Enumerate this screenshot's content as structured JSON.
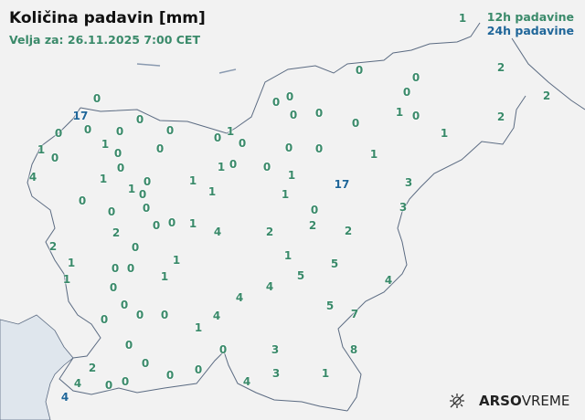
{
  "header": {
    "title": "Količina padavin [mm]",
    "subtitle": "Velja za: 26.11.2025 7:00 CET"
  },
  "legend": {
    "items": [
      {
        "label": "12h padavine",
        "color": "#3a8a6a"
      },
      {
        "label": "24h padavine",
        "color": "#1f6699"
      }
    ]
  },
  "colors": {
    "h12": "#3a8a6a",
    "h24": "#1f6699",
    "border": "#5b6b82",
    "sea": "#dfe6ed",
    "land": "#f2f2f2"
  },
  "logo": {
    "bold": "ARSO",
    "light": "VREME",
    "icon": "sun-cloud-icon"
  },
  "stations": [
    {
      "v": "1",
      "t": "12h"
    },
    {
      "v": "0",
      "t": "12h"
    },
    {
      "v": "0",
      "t": "12h"
    },
    {
      "v": "2",
      "t": "12h"
    },
    {
      "v": "2",
      "t": "12h"
    },
    {
      "v": "2",
      "t": "12h"
    },
    {
      "v": "0",
      "t": "12h"
    },
    {
      "v": "0",
      "t": "12h"
    },
    {
      "v": "0",
      "t": "12h"
    },
    {
      "v": "0",
      "t": "12h"
    },
    {
      "v": "0",
      "t": "12h"
    },
    {
      "v": "0",
      "t": "12h"
    },
    {
      "v": "1",
      "t": "12h"
    },
    {
      "v": "0",
      "t": "12h"
    },
    {
      "v": "1",
      "t": "12h"
    },
    {
      "v": "0",
      "t": "12h"
    },
    {
      "v": "0",
      "t": "12h"
    },
    {
      "v": "1",
      "t": "12h"
    },
    {
      "v": "0",
      "t": "12h"
    },
    {
      "v": "1",
      "t": "12h"
    },
    {
      "v": "1",
      "t": "12h"
    },
    {
      "v": "17",
      "t": "24h"
    },
    {
      "v": "3",
      "t": "12h"
    },
    {
      "v": "3",
      "t": "12h"
    },
    {
      "v": "0",
      "t": "12h"
    },
    {
      "v": "2",
      "t": "12h"
    },
    {
      "v": "2",
      "t": "12h"
    },
    {
      "v": "2",
      "t": "12h"
    },
    {
      "v": "4",
      "t": "12h"
    },
    {
      "v": "1",
      "t": "12h"
    },
    {
      "v": "0",
      "t": "12h"
    },
    {
      "v": "0",
      "t": "12h"
    },
    {
      "v": "0",
      "t": "12h"
    },
    {
      "v": "17",
      "t": "24h"
    },
    {
      "v": "0",
      "t": "12h"
    },
    {
      "v": "0",
      "t": "12h"
    },
    {
      "v": "0",
      "t": "12h"
    },
    {
      "v": "0",
      "t": "12h"
    },
    {
      "v": "0",
      "t": "12h"
    },
    {
      "v": "1",
      "t": "12h"
    },
    {
      "v": "0",
      "t": "12h"
    },
    {
      "v": "1",
      "t": "12h"
    },
    {
      "v": "0",
      "t": "12h"
    },
    {
      "v": "0",
      "t": "12h"
    },
    {
      "v": "0",
      "t": "12h"
    },
    {
      "v": "1",
      "t": "12h"
    },
    {
      "v": "0",
      "t": "12h"
    },
    {
      "v": "4",
      "t": "12h"
    },
    {
      "v": "1",
      "t": "12h"
    },
    {
      "v": "0",
      "t": "12h"
    },
    {
      "v": "1",
      "t": "12h"
    },
    {
      "v": "0",
      "t": "12h"
    },
    {
      "v": "1",
      "t": "12h"
    },
    {
      "v": "1",
      "t": "12h"
    },
    {
      "v": "1",
      "t": "12h"
    },
    {
      "v": "0",
      "t": "12h"
    },
    {
      "v": "0",
      "t": "12h"
    },
    {
      "v": "0",
      "t": "12h"
    },
    {
      "v": "0",
      "t": "12h"
    },
    {
      "v": "0",
      "t": "12h"
    },
    {
      "v": "2",
      "t": "12h"
    },
    {
      "v": "0",
      "t": "12h"
    },
    {
      "v": "2",
      "t": "12h"
    },
    {
      "v": "1",
      "t": "12h"
    },
    {
      "v": "1",
      "t": "12h"
    },
    {
      "v": "0",
      "t": "12h"
    },
    {
      "v": "0",
      "t": "12h"
    },
    {
      "v": "1",
      "t": "12h"
    },
    {
      "v": "1",
      "t": "12h"
    },
    {
      "v": "0",
      "t": "12h"
    },
    {
      "v": "0",
      "t": "12h"
    },
    {
      "v": "0",
      "t": "12h"
    },
    {
      "v": "0",
      "t": "12h"
    },
    {
      "v": "0",
      "t": "12h"
    },
    {
      "v": "1",
      "t": "12h"
    },
    {
      "v": "4",
      "t": "12h"
    },
    {
      "v": "4",
      "t": "12h"
    },
    {
      "v": "4",
      "t": "12h"
    },
    {
      "v": "0",
      "t": "12h"
    },
    {
      "v": "0",
      "t": "12h"
    },
    {
      "v": "0",
      "t": "12h"
    },
    {
      "v": "0",
      "t": "12h"
    },
    {
      "v": "2",
      "t": "12h"
    },
    {
      "v": "4",
      "t": "12h"
    },
    {
      "v": "0",
      "t": "12h"
    },
    {
      "v": "0",
      "t": "12h"
    },
    {
      "v": "0",
      "t": "12h"
    },
    {
      "v": "4",
      "t": "24h"
    },
    {
      "v": "4",
      "t": "12h"
    },
    {
      "v": "3",
      "t": "12h"
    },
    {
      "v": "3",
      "t": "12h"
    },
    {
      "v": "1",
      "t": "12h"
    },
    {
      "v": "8",
      "t": "12h"
    },
    {
      "v": "7",
      "t": "12h"
    },
    {
      "v": "5",
      "t": "12h"
    },
    {
      "v": "5",
      "t": "12h"
    },
    {
      "v": "5",
      "t": "12h"
    },
    {
      "v": "1",
      "t": "12h"
    },
    {
      "v": "4",
      "t": "12h"
    }
  ]
}
